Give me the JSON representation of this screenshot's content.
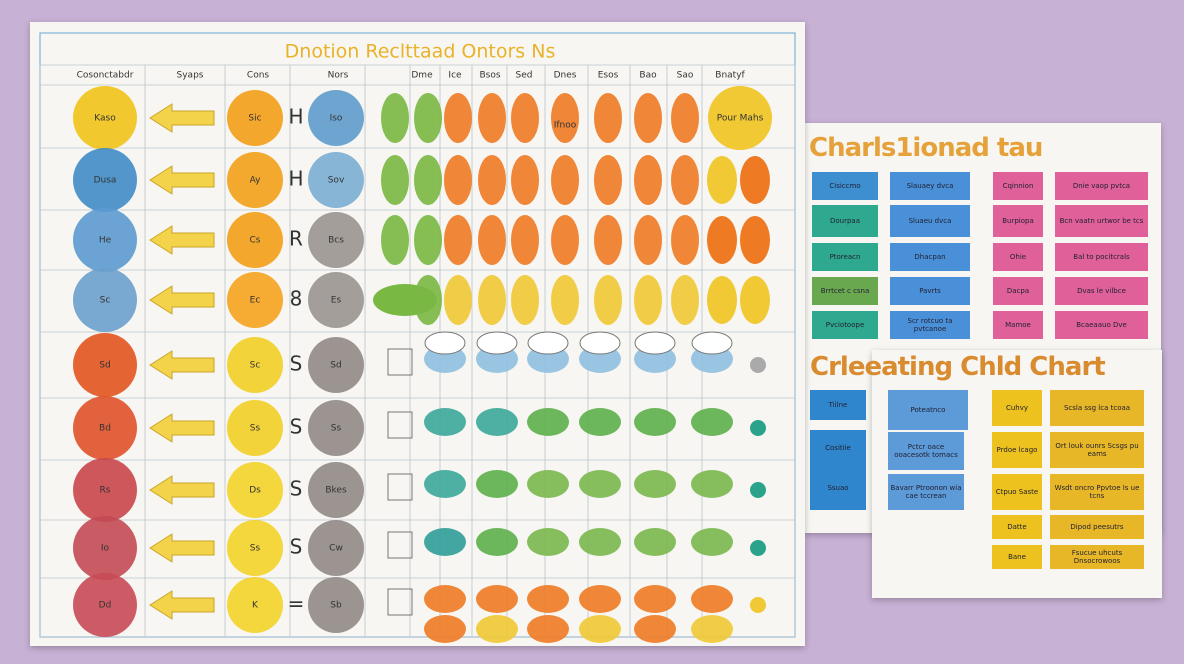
{
  "left_chart": {
    "title": "Dnotion Reclttaad Ontors Ns",
    "columns": [
      "Cosonctabdr",
      "Syaps",
      "Cons",
      "Nors",
      "Dme",
      "Ice",
      "Bsos",
      "Sed",
      "Dnes",
      "Esos",
      "Bao",
      "Sao",
      "Bnatyf"
    ],
    "rows": [
      {
        "a": "Kaso",
        "c": "Sic",
        "s": "H",
        "d": "Iso"
      },
      {
        "a": "Dusa",
        "c": "Ay",
        "s": "H",
        "d": "Sov"
      },
      {
        "a": "He",
        "c": "Cs",
        "s": "R",
        "d": "Bcs"
      },
      {
        "a": "Sc",
        "c": "Ec",
        "s": "8",
        "d": "Es"
      },
      {
        "a": "Sd",
        "c": "Sc",
        "s": "S",
        "d": "Sd"
      },
      {
        "a": "Bd",
        "c": "Ss",
        "s": "S",
        "d": "Ss"
      },
      {
        "a": "Rs",
        "c": "Ds",
        "s": "S",
        "d": "Bkes"
      },
      {
        "a": "Io",
        "c": "Ss",
        "s": "S",
        "d": "Cw"
      },
      {
        "a": "Dd",
        "c": "K",
        "s": "=",
        "d": "Sb"
      }
    ],
    "notes": [
      "Ifnoo",
      "Pour Mahs"
    ]
  },
  "panel_one": {
    "title": "Charls1ionad tau",
    "rows": [
      [
        "Cisiccmo",
        "Slauaey dvca",
        "Cqinnion",
        "Dnie vaop pvtca"
      ],
      [
        "Dourpaa",
        "Sluaeu dvca",
        "Burpiopa",
        "Bcn vaatn urtwor be tcs"
      ],
      [
        "Ptoreacn",
        "Dhacpan",
        "Ohie",
        "Bal to pocitcrals"
      ],
      [
        "Brrtcet c csna",
        "Pavrts",
        "Dacpa",
        "Dvas le vilbce"
      ],
      [
        "Pvciotoope",
        "Scr rotcuo ta pvtcanoe",
        "Mamoe",
        "Bcaeaauo Dve"
      ]
    ]
  },
  "panel_two": {
    "title": "Crleeating Chld Chart",
    "first": [
      "Tiilne",
      "Cositiie",
      "Ssuao"
    ],
    "second": [
      "Poteatnco",
      "Pctcr oace ooacesotk tomacs",
      "Bavarr Ptroonon wia cae tccrean"
    ],
    "third": [
      "Cuhvy",
      "Prdoe lcago",
      "Ctpuo Saste",
      "Datte",
      "Bane"
    ],
    "fourth": [
      "Scsla ssg lca tcoaa",
      "Ort louk ounrs Scsgs pu eams",
      "Wsdt oncro Ppvtoe Is ue tcns",
      "Dipod peesutrs",
      "Fsucue uhcuts Dnsocrowoos"
    ]
  }
}
